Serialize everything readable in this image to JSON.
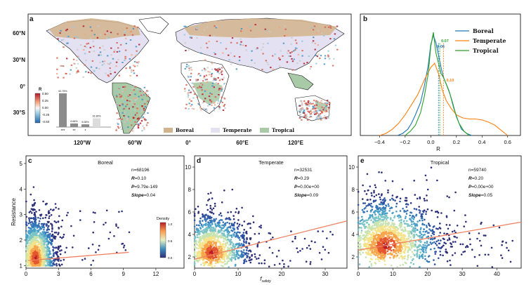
{
  "colors": {
    "boreal": "#d2b48c",
    "temperate": "#e4e2f2",
    "tropical": "#a8caa6",
    "line_boreal": "#1f77b4",
    "line_temperate": "#ff7f0e",
    "line_tropical": "#2ca02c",
    "fit": "#f08060",
    "bar": "#8c8c8c"
  },
  "icons": [
    "world-map-icon",
    "colorbar-icon"
  ],
  "chart_data": [
    {
      "panel": "a",
      "type": "map",
      "lat_ticks": [
        "60°N",
        "30°N",
        "0°",
        "30°S"
      ],
      "lon_ticks": [
        "120°W",
        "60°W",
        "0°",
        "60°E",
        "120°E"
      ],
      "legend": [
        {
          "name": "Boreal",
          "color": "#d2b48c"
        },
        {
          "name": "Temperate",
          "color": "#e4e2f2"
        },
        {
          "name": "Tropical",
          "color": "#a8caa6"
        }
      ],
      "colorbar": {
        "label": "R",
        "ticks": [
          "0.50",
          "0.25",
          "0.00",
          "-0.25",
          "-0.50"
        ],
        "range": [
          -0.5,
          0.5
        ]
      },
      "inset_bar": {
        "categories": [
          "***",
          "**",
          "*",
          ""
        ],
        "values": [
          62.75,
          6.66,
          5.08,
          16.36
        ],
        "labels": [
          "62.75%",
          "6.66%",
          "5.08%",
          "16.36%"
        ]
      }
    },
    {
      "panel": "b",
      "type": "line",
      "xlabel": "R",
      "xlim": [
        -0.55,
        0.7
      ],
      "xticks": [
        -0.4,
        -0.2,
        0.0,
        0.2,
        0.4,
        0.6
      ],
      "xticklabels": [
        "−0.4",
        "−0.2",
        "0.0",
        "0.2",
        "0.4",
        "0.6"
      ],
      "series": [
        {
          "name": "Boreal",
          "color": "#1f77b4",
          "median": 0.06,
          "median_label": "0.06",
          "x": [
            -0.26,
            -0.22,
            -0.18,
            -0.15,
            -0.12,
            -0.08,
            -0.05,
            -0.02,
            0.0,
            0.02,
            0.04,
            0.06,
            0.08,
            0.1,
            0.12,
            0.14,
            0.17,
            0.2,
            0.24,
            0.28,
            0.32
          ],
          "y": [
            0.0,
            0.02,
            0.06,
            0.12,
            0.2,
            0.32,
            0.48,
            0.68,
            0.88,
            0.97,
            0.9,
            0.78,
            0.66,
            0.56,
            0.5,
            0.44,
            0.32,
            0.18,
            0.06,
            0.02,
            0.0
          ]
        },
        {
          "name": "Temperate",
          "color": "#ff7f0e",
          "median": 0.1,
          "median_label": "0.10",
          "x": [
            -0.4,
            -0.35,
            -0.3,
            -0.25,
            -0.2,
            -0.15,
            -0.1,
            -0.05,
            0.0,
            0.03,
            0.06,
            0.09,
            0.12,
            0.16,
            0.2,
            0.25,
            0.3,
            0.35,
            0.4,
            0.45,
            0.5,
            0.55,
            0.6
          ],
          "y": [
            0.0,
            0.02,
            0.06,
            0.12,
            0.2,
            0.3,
            0.4,
            0.54,
            0.66,
            0.7,
            0.6,
            0.44,
            0.34,
            0.26,
            0.2,
            0.17,
            0.16,
            0.16,
            0.15,
            0.13,
            0.1,
            0.05,
            0.0
          ]
        },
        {
          "name": "Tropical",
          "color": "#2ca02c",
          "median": 0.07,
          "median_label": "0.07",
          "x": [
            -0.2,
            -0.16,
            -0.12,
            -0.08,
            -0.05,
            -0.02,
            0.0,
            0.02,
            0.04,
            0.06,
            0.08,
            0.1,
            0.12,
            0.15,
            0.18,
            0.22,
            0.26,
            0.3
          ],
          "y": [
            0.0,
            0.04,
            0.1,
            0.22,
            0.38,
            0.6,
            0.86,
            1.0,
            0.8,
            0.7,
            0.6,
            0.56,
            0.5,
            0.4,
            0.26,
            0.12,
            0.04,
            0.0
          ]
        }
      ]
    },
    {
      "panel": "c",
      "type": "scatter",
      "title": "Boreal",
      "ylabel": "Resistance",
      "xlim": [
        0,
        14.6
      ],
      "ylim": [
        0.9,
        5.3
      ],
      "xticks": [
        0,
        3,
        6,
        9,
        12
      ],
      "yticks": [
        1,
        2,
        3,
        4,
        5
      ],
      "stats": {
        "n": "n=68196",
        "R_label": "R",
        "R": "=0.10",
        "P_label": "P",
        "P": "=9.79e-149",
        "Slope_label": "Slope",
        "Slope": "=0.04"
      },
      "fit": {
        "x0": 0.2,
        "y0": 1.2,
        "x1": 9.5,
        "y1": 1.52
      },
      "cloud": {
        "xmean": 0.9,
        "xsd": 0.7,
        "xmax": 9.6,
        "ymean": 1.3,
        "ysd": 0.6,
        "ymin": 1.0,
        "ymax": 5.2
      },
      "colorbar": {
        "label": "Density",
        "ticks": [
          "1.0",
          "0.5",
          "0.0"
        ]
      }
    },
    {
      "panel": "d",
      "type": "scatter",
      "title": "Temperate",
      "xlabel": "f",
      "xlabel_sub": "safety",
      "xlim": [
        0,
        35
      ],
      "ylim": [
        1,
        11
      ],
      "xticks": [
        0,
        10,
        20,
        30
      ],
      "yticks": [
        2,
        4,
        6,
        8,
        10
      ],
      "stats": {
        "n": "n=32531",
        "R_label": "R",
        "R": "=0.29",
        "P_label": "P",
        "P": "=0.00e+00",
        "Slope_label": "Slope",
        "Slope": "=0.09"
      },
      "fit": {
        "x0": 0,
        "y0": 1.8,
        "x1": 35,
        "y1": 5.2
      },
      "cloud": {
        "xmean": 4.0,
        "xsd": 3.2,
        "xmax": 33,
        "ymean": 2.4,
        "ysd": 1.3,
        "ymin": 1.1,
        "ymax": 10.3
      }
    },
    {
      "panel": "e",
      "type": "scatter",
      "title": "Tropical",
      "xlim": [
        0,
        47
      ],
      "ylim": [
        1,
        11
      ],
      "xticks": [
        0,
        10,
        20,
        30,
        40
      ],
      "yticks": [
        2,
        4,
        6,
        8,
        10
      ],
      "stats": {
        "n": "n=59740",
        "R_label": "R",
        "R": "=0.20",
        "P_label": "P",
        "P": "=0.00e+00",
        "Slope_label": "Slope",
        "Slope": "=0.05"
      },
      "fit": {
        "x0": 0,
        "y0": 2.6,
        "x1": 47,
        "y1": 5.1
      },
      "cloud": {
        "xmean": 8.0,
        "xsd": 6.0,
        "xmax": 45,
        "ymean": 3.0,
        "ysd": 1.6,
        "ymin": 1.1,
        "ymax": 10.5
      }
    }
  ]
}
